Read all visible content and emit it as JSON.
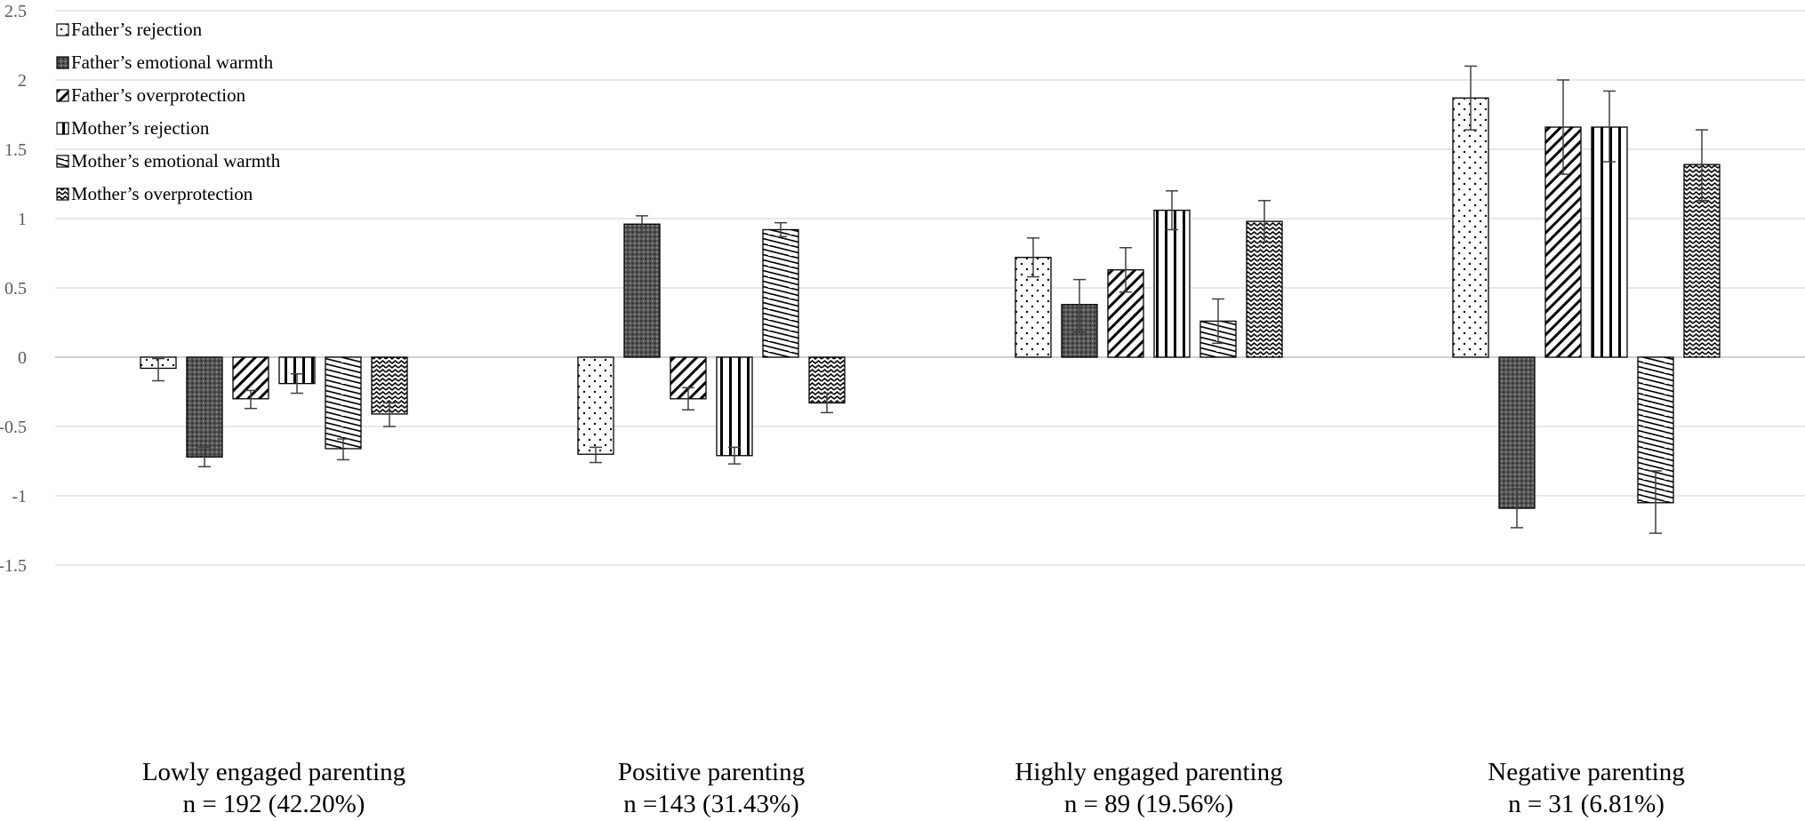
{
  "chart_data": {
    "type": "bar",
    "title": "",
    "xlabel": "",
    "ylabel": "",
    "ylim": [
      -1.5,
      2.5
    ],
    "yticks": [
      -1.5,
      -1,
      -0.5,
      0,
      0.5,
      1,
      1.5,
      2,
      2.5
    ],
    "ytick_labels": [
      "-1.5",
      "-1",
      "-0.5",
      "0",
      "0.5",
      "1",
      "1.5",
      "2",
      "2.5"
    ],
    "grid": true,
    "legend_position": "top-left",
    "categories": [
      {
        "line1": "Lowly engaged parenting",
        "line2": "n = 192 (42.20%)"
      },
      {
        "line1": "Positive parenting",
        "line2": "n =143 (31.43%)"
      },
      {
        "line1": "Highly engaged parenting",
        "line2": "n = 89 (19.56%)"
      },
      {
        "line1": "Negative parenting",
        "line2": "n = 31 (6.81%)"
      }
    ],
    "series": [
      {
        "name": "Father’s rejection",
        "pattern": "dots",
        "values": [
          -0.08,
          -0.7,
          0.72,
          1.87
        ],
        "err_low": [
          -0.17,
          -0.76,
          0.58,
          1.64
        ],
        "err_high": [
          -0.01,
          -0.65,
          0.86,
          2.1
        ]
      },
      {
        "name": "Father’s emotional warmth",
        "pattern": "dense",
        "values": [
          -0.72,
          0.96,
          0.38,
          -1.09
        ],
        "err_low": [
          -0.79,
          0.9,
          0.18,
          -1.23
        ],
        "err_high": [
          -0.65,
          1.02,
          0.56,
          -0.95
        ]
      },
      {
        "name": "Father’s overprotection",
        "pattern": "diagonal",
        "values": [
          -0.3,
          -0.3,
          0.63,
          1.66
        ],
        "err_low": [
          -0.37,
          -0.38,
          0.47,
          1.32
        ],
        "err_high": [
          -0.24,
          -0.22,
          0.79,
          2.0
        ]
      },
      {
        "name": "Mother’s rejection",
        "pattern": "vertical",
        "values": [
          -0.19,
          -0.71,
          1.06,
          1.66
        ],
        "err_low": [
          -0.26,
          -0.77,
          0.92,
          1.41
        ],
        "err_high": [
          -0.12,
          -0.65,
          1.2,
          1.92
        ]
      },
      {
        "name": "Mother’s emotional warmth",
        "pattern": "steps",
        "values": [
          -0.66,
          0.92,
          0.26,
          -1.05
        ],
        "err_low": [
          -0.74,
          0.87,
          0.1,
          -1.27
        ],
        "err_high": [
          -0.59,
          0.97,
          0.42,
          -0.82
        ]
      },
      {
        "name": "Mother’s overprotection",
        "pattern": "zigzag",
        "values": [
          -0.41,
          -0.33,
          0.98,
          1.39
        ],
        "err_low": [
          -0.5,
          -0.4,
          0.83,
          1.13
        ],
        "err_high": [
          -0.33,
          -0.26,
          1.13,
          1.64
        ]
      }
    ]
  }
}
